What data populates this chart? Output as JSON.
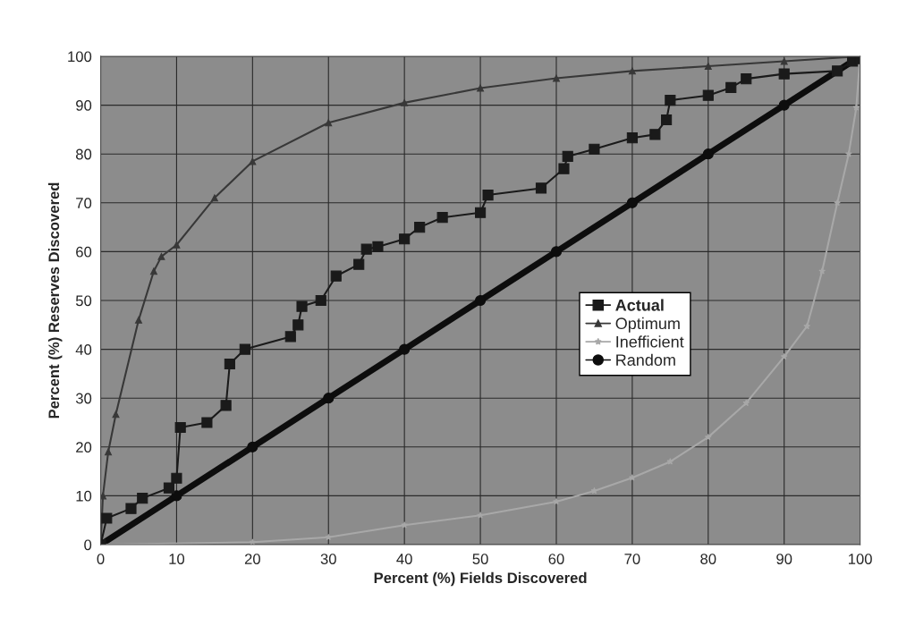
{
  "chart_data": {
    "type": "line",
    "xlabel": "Percent (%) Fields Discovered",
    "ylabel": "Percent (%) Reserves Discovered",
    "xlim": [
      0,
      100
    ],
    "ylim": [
      0,
      100
    ],
    "xticks": [
      0,
      10,
      20,
      30,
      40,
      50,
      60,
      70,
      80,
      90,
      100
    ],
    "yticks": [
      0,
      10,
      20,
      30,
      40,
      50,
      60,
      70,
      80,
      90,
      100
    ],
    "grid": true,
    "legend": "right",
    "series": [
      {
        "name": "Actual",
        "color": "#1a1a1a",
        "marker": "square",
        "x": [
          0,
          0.8,
          4,
          5.5,
          9,
          10,
          10.5,
          14,
          16.5,
          17,
          19,
          25,
          26,
          26.5,
          29,
          31,
          34,
          35,
          36.5,
          40,
          42,
          45,
          50,
          51,
          58,
          61,
          61.5,
          65,
          70,
          73,
          74.5,
          75,
          80,
          83,
          85,
          90,
          97,
          99,
          100
        ],
        "values": [
          0,
          5.4,
          7.4,
          9.5,
          11.6,
          13.6,
          24,
          25,
          28.5,
          37,
          40,
          42.6,
          45,
          48.8,
          50,
          55,
          57.4,
          60.5,
          61,
          62.6,
          65,
          67,
          68,
          71.6,
          73,
          77,
          79.5,
          81,
          83.3,
          84,
          87,
          91,
          92,
          93.6,
          95.4,
          96.4,
          97,
          99,
          99.5
        ]
      },
      {
        "name": "Optimum",
        "color": "#383838",
        "marker": "triangle",
        "x": [
          0,
          0.3,
          1,
          2,
          5,
          7,
          8,
          10,
          15,
          20,
          30,
          40,
          50,
          60,
          70,
          80,
          90,
          100
        ],
        "values": [
          0,
          10,
          19,
          26.7,
          46,
          56,
          59,
          61.4,
          71,
          78.5,
          86.4,
          90.5,
          93.5,
          95.5,
          97,
          98,
          99,
          100
        ]
      },
      {
        "name": "Inefficient",
        "color": "#a8a8a8",
        "marker": "star",
        "x": [
          0,
          20,
          30,
          40,
          50,
          60,
          65,
          70,
          75,
          80,
          85,
          90,
          93,
          95,
          97,
          98.5,
          99.5,
          100
        ],
        "values": [
          0,
          0.5,
          1.5,
          4,
          6,
          8.8,
          11,
          13.7,
          17,
          22,
          29,
          38.5,
          44.7,
          56,
          70,
          80,
          89.5,
          100
        ]
      },
      {
        "name": "Random",
        "color": "#0d0d0d",
        "marker": "circle",
        "x": [
          0,
          10,
          20,
          30,
          40,
          50,
          60,
          70,
          80,
          90,
          100
        ],
        "values": [
          0,
          10,
          20,
          30,
          40,
          50,
          60,
          70,
          80,
          90,
          100
        ]
      }
    ]
  }
}
